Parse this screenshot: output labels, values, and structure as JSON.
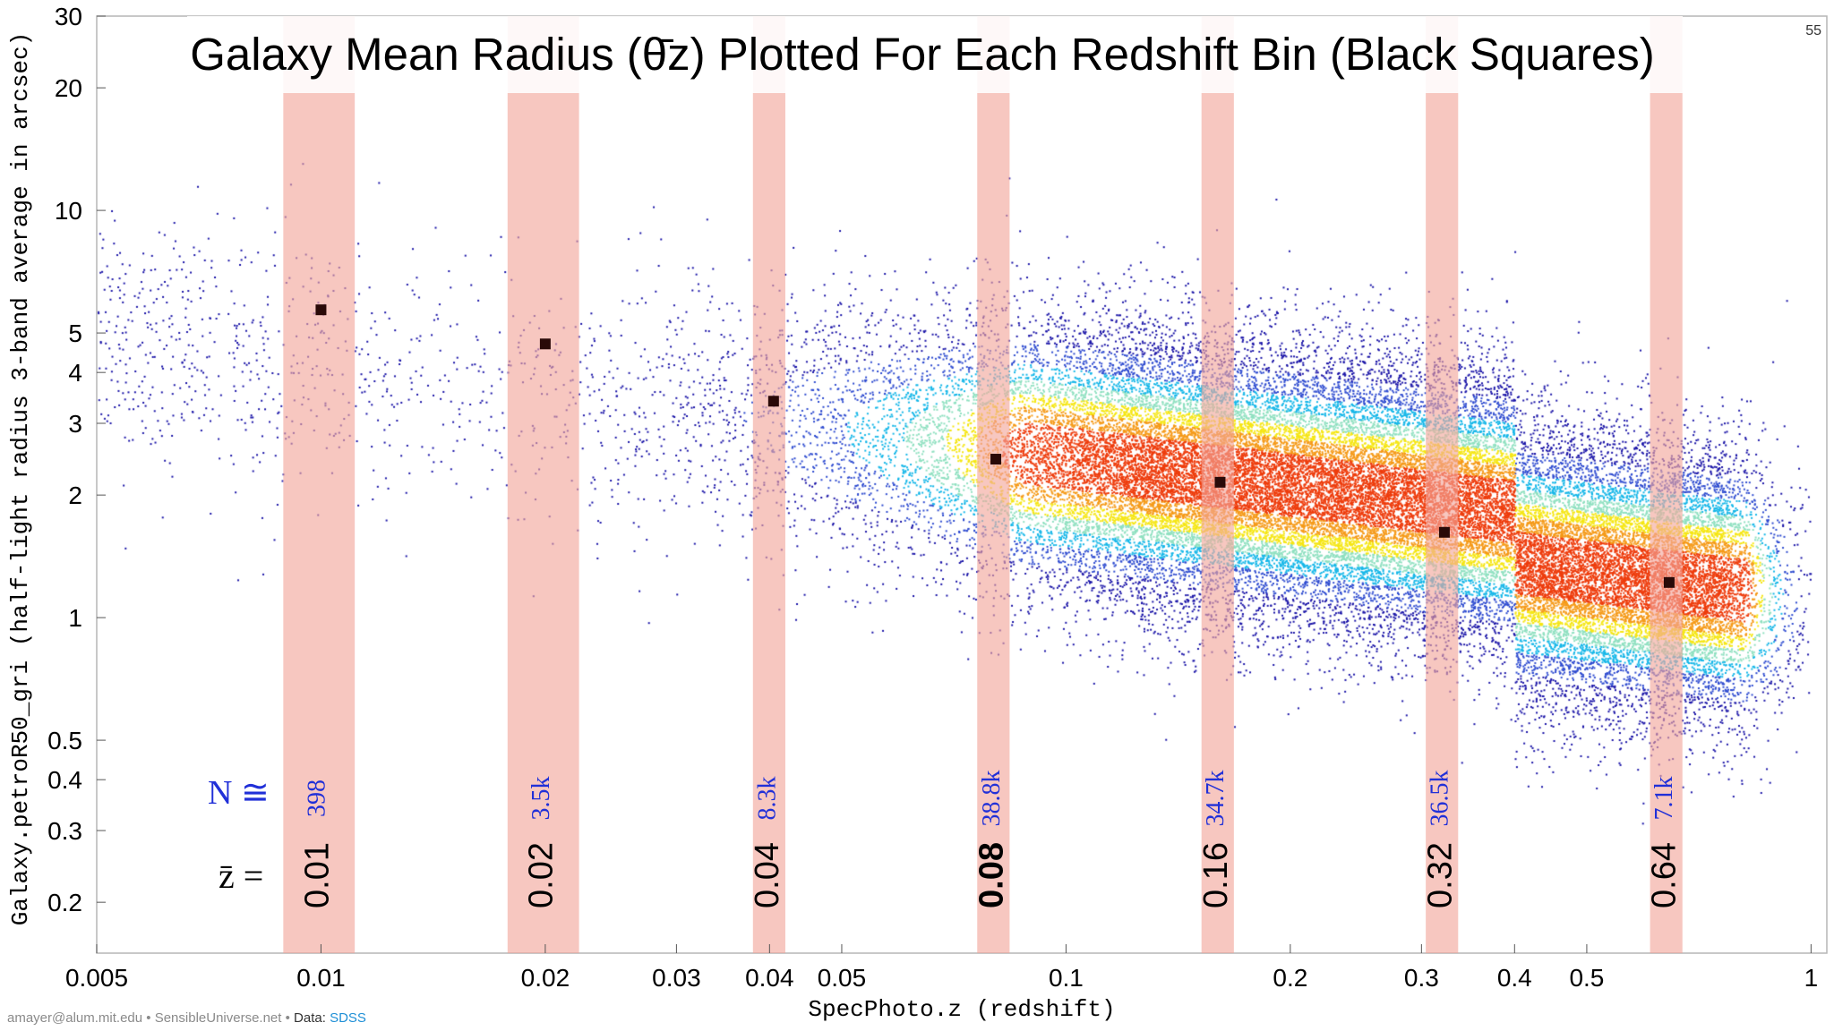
{
  "page_number": "55",
  "footer": {
    "credit": "amayer@alum.mit.edu • SensibleUniverse.net • ",
    "data_label": "Data: ",
    "data_source": "SDSS"
  },
  "chart_data": {
    "type": "scatter",
    "title": "Galaxy Mean Radius (θ̄z) Plotted For Each Redshift Bin (Black Squares)",
    "xlabel": "SpecPhoto.z (redshift)",
    "ylabel": "Galaxy.petroR50_gri (half-light radius 3-band average in arcsec)",
    "x_scale": "log",
    "y_scale": "log",
    "xlim": [
      0.005,
      1.05
    ],
    "ylim": [
      0.15,
      30
    ],
    "x_ticks": [
      {
        "v": 0.005,
        "label": "0.005"
      },
      {
        "v": 0.01,
        "label": "0.01"
      },
      {
        "v": 0.02,
        "label": "0.02"
      },
      {
        "v": 0.03,
        "label": "0.03"
      },
      {
        "v": 0.04,
        "label": "0.04"
      },
      {
        "v": 0.05,
        "label": "0.05"
      },
      {
        "v": 0.1,
        "label": "0.1"
      },
      {
        "v": 0.2,
        "label": "0.2"
      },
      {
        "v": 0.3,
        "label": "0.3"
      },
      {
        "v": 0.4,
        "label": "0.4"
      },
      {
        "v": 0.5,
        "label": "0.5"
      },
      {
        "v": 1,
        "label": "1"
      }
    ],
    "y_ticks": [
      {
        "v": 0.2,
        "label": "0.2"
      },
      {
        "v": 0.3,
        "label": "0.3"
      },
      {
        "v": 0.4,
        "label": "0.4"
      },
      {
        "v": 0.5,
        "label": "0.5"
      },
      {
        "v": 1,
        "label": "1"
      },
      {
        "v": 2,
        "label": "2"
      },
      {
        "v": 3,
        "label": "3"
      },
      {
        "v": 4,
        "label": "4"
      },
      {
        "v": 5,
        "label": "5"
      },
      {
        "v": 10,
        "label": "10"
      },
      {
        "v": 20,
        "label": "20"
      },
      {
        "v": 30,
        "label": "30"
      }
    ],
    "n_prefix": "N ≅",
    "z_prefix": "z̄ =",
    "bins": [
      {
        "z_label": "0.01",
        "n_label": "398",
        "z_lo": 0.0089,
        "z_hi": 0.0111,
        "mean_z": 0.01,
        "mean_radius": 5.7,
        "bold": false
      },
      {
        "z_label": "0.02",
        "n_label": "3.5k",
        "z_lo": 0.0178,
        "z_hi": 0.0222,
        "mean_z": 0.02,
        "mean_radius": 4.7,
        "bold": false
      },
      {
        "z_label": "0.04",
        "n_label": "8.3k",
        "z_lo": 0.038,
        "z_hi": 0.042,
        "mean_z": 0.0405,
        "mean_radius": 3.4,
        "bold": false
      },
      {
        "z_label": "0.08",
        "n_label": "38.8k",
        "z_lo": 0.076,
        "z_hi": 0.084,
        "mean_z": 0.0805,
        "mean_radius": 2.45,
        "bold": true
      },
      {
        "z_label": "0.16",
        "n_label": "34.7k",
        "z_lo": 0.152,
        "z_hi": 0.168,
        "mean_z": 0.161,
        "mean_radius": 2.15,
        "bold": false
      },
      {
        "z_label": "0.32",
        "n_label": "36.5k",
        "z_lo": 0.304,
        "z_hi": 0.336,
        "mean_z": 0.322,
        "mean_radius": 1.62,
        "bold": false
      },
      {
        "z_label": "0.64",
        "n_label": "7.1k",
        "z_lo": 0.608,
        "z_hi": 0.672,
        "mean_z": 0.645,
        "mean_radius": 1.22,
        "bold": false
      }
    ],
    "colors": {
      "bin_band": "#f2a49a",
      "mean_marker": "#2a0a08",
      "density_low": "#1c16a8",
      "density_mid": "#16b7e8",
      "density_high": "#f5e614",
      "density_peak": "#ee3c0c"
    },
    "grid": false,
    "legend": "none"
  }
}
